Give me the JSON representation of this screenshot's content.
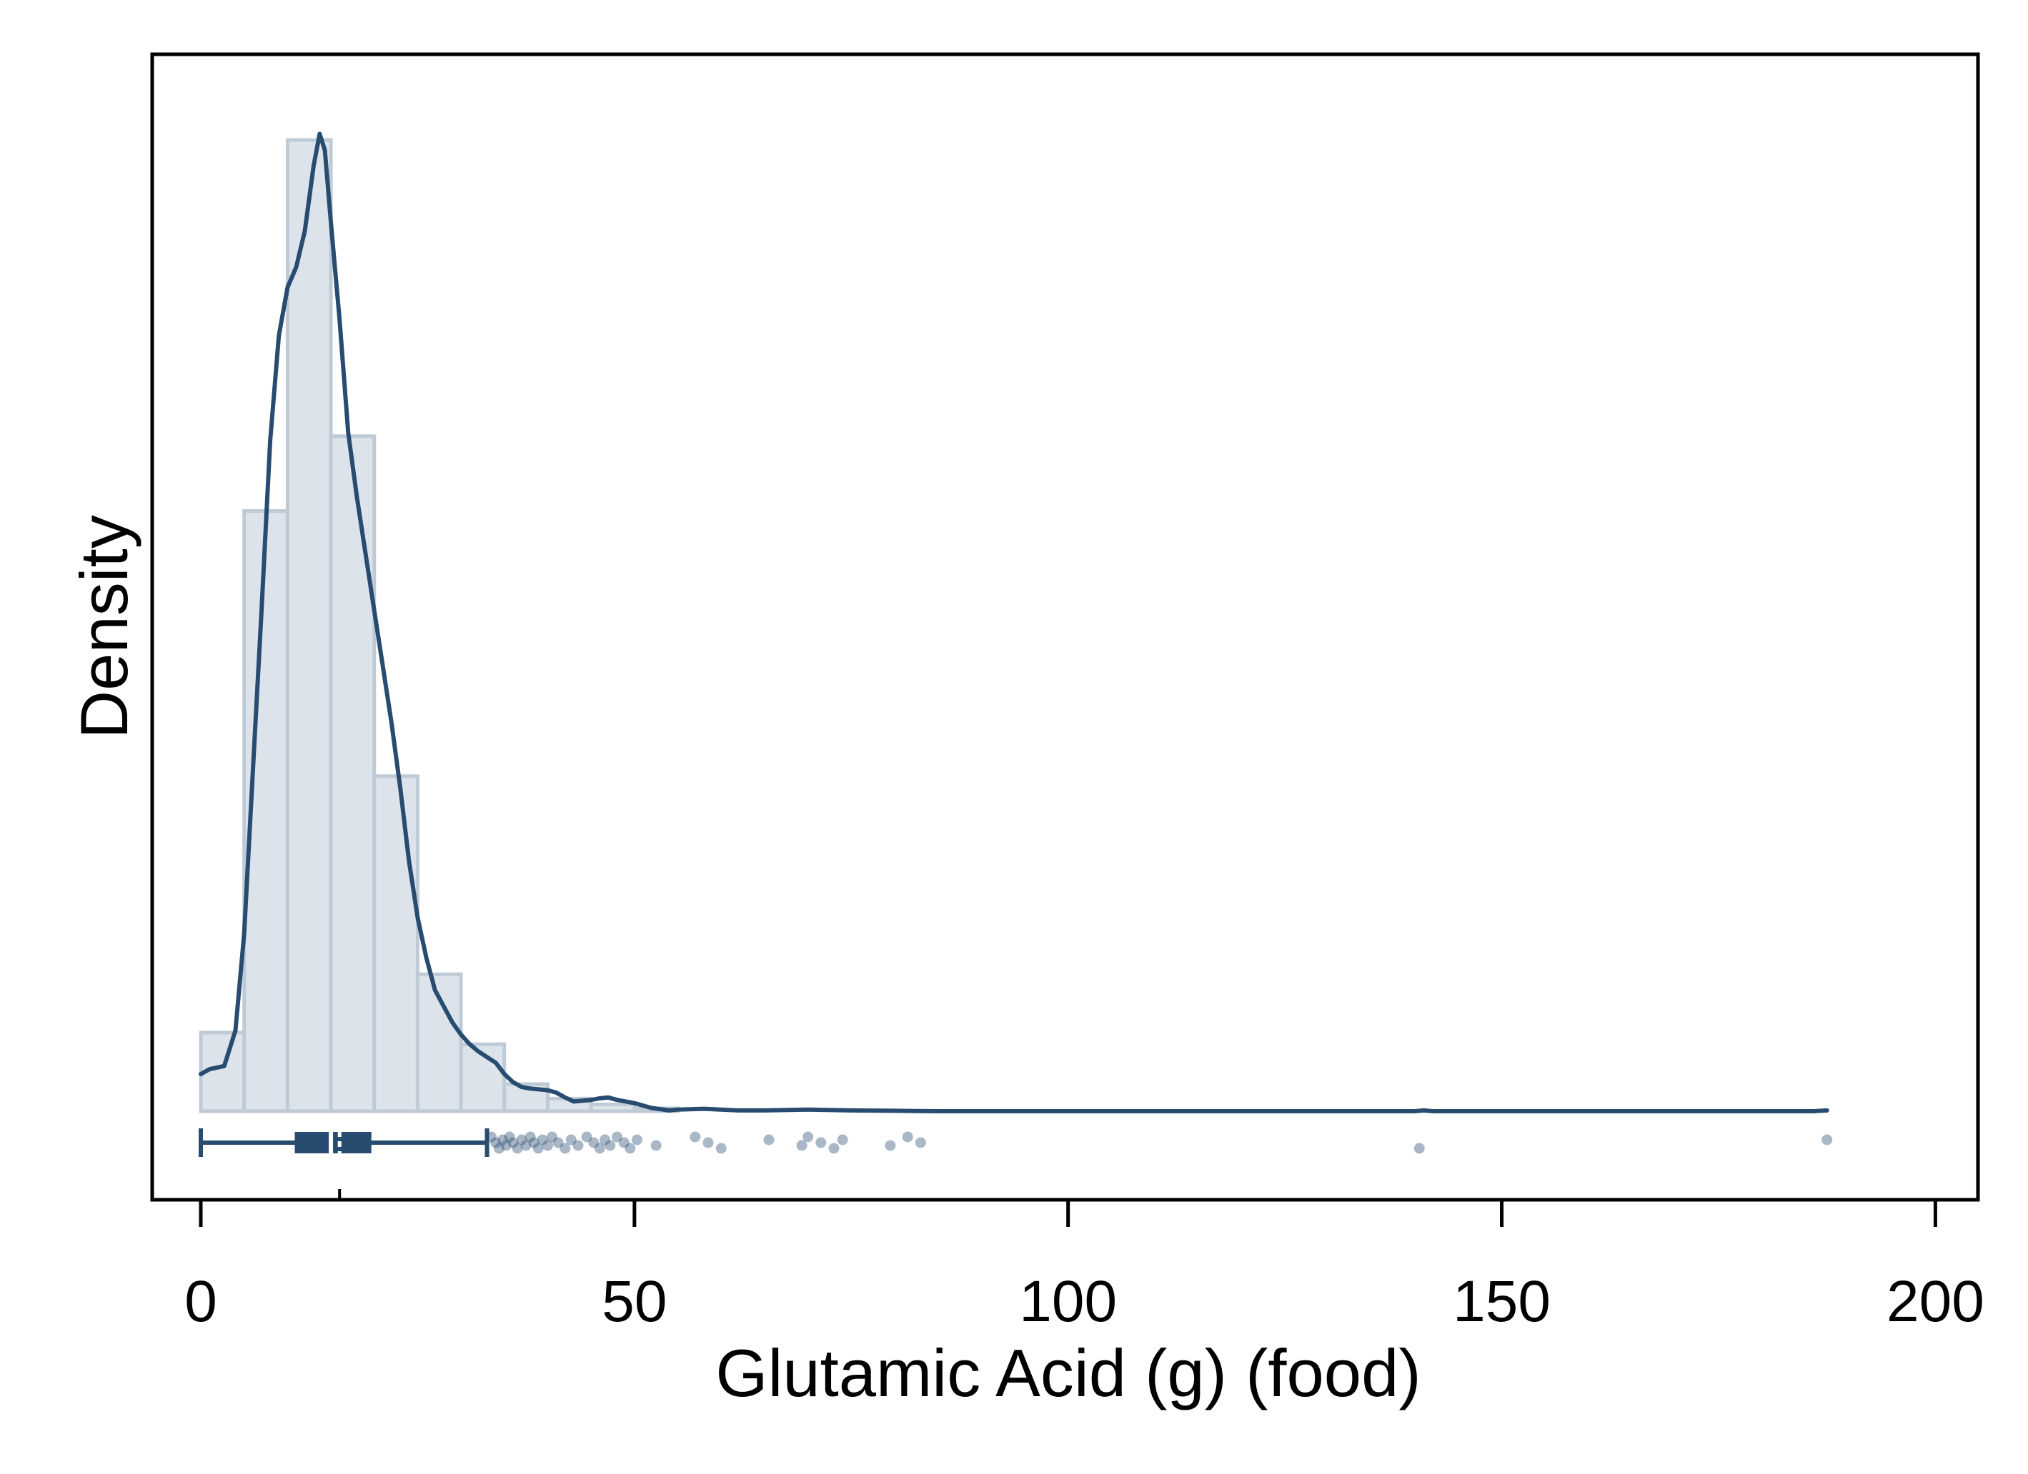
{
  "chart_data": {
    "type": "histogram",
    "xlabel": "Glutamic Acid (g) (food)",
    "ylabel": "Density",
    "xlim": [
      -5,
      206
    ],
    "xticks": [
      "0",
      "50",
      "100",
      "150",
      "200"
    ],
    "xtick_values": [
      0,
      50,
      100,
      150,
      200
    ],
    "y_ticks_shown": false,
    "grid": false,
    "colors": {
      "bar_fill": "#dde3ea",
      "bar_edge": "#bfcad7",
      "line": "#274c70",
      "points": "#274c70"
    },
    "histogram": {
      "bin_width": 5,
      "bins": [
        {
          "x0": 0,
          "x1": 5,
          "rel_height": 0.081
        },
        {
          "x0": 5,
          "x1": 10,
          "rel_height": 0.618
        },
        {
          "x0": 10,
          "x1": 15,
          "rel_height": 1.0
        },
        {
          "x0": 15,
          "x1": 20,
          "rel_height": 0.695
        },
        {
          "x0": 20,
          "x1": 25,
          "rel_height": 0.345
        },
        {
          "x0": 25,
          "x1": 30,
          "rel_height": 0.141
        },
        {
          "x0": 30,
          "x1": 35,
          "rel_height": 0.069
        },
        {
          "x0": 35,
          "x1": 40,
          "rel_height": 0.028
        },
        {
          "x0": 40,
          "x1": 45,
          "rel_height": 0.013
        },
        {
          "x0": 45,
          "x1": 50,
          "rel_height": 0.007
        },
        {
          "x0": 50,
          "x1": 55,
          "rel_height": 0.003
        }
      ]
    },
    "density_curve": [
      [
        0,
        0.046
      ],
      [
        1,
        0.052
      ],
      [
        2.7,
        0.056
      ],
      [
        4,
        0.1
      ],
      [
        5,
        0.22
      ],
      [
        6,
        0.42
      ],
      [
        7,
        0.62
      ],
      [
        8,
        0.83
      ],
      [
        9,
        0.96
      ],
      [
        10,
        1.02
      ],
      [
        11,
        1.045
      ],
      [
        12,
        1.09
      ],
      [
        13,
        1.17
      ],
      [
        13.7,
        1.21
      ],
      [
        14.3,
        1.19
      ],
      [
        15,
        1.1
      ],
      [
        16,
        0.98
      ],
      [
        17,
        0.84
      ],
      [
        18,
        0.76
      ],
      [
        19,
        0.69
      ],
      [
        20,
        0.62
      ],
      [
        21,
        0.55
      ],
      [
        22,
        0.48
      ],
      [
        23,
        0.4
      ],
      [
        24,
        0.31
      ],
      [
        25,
        0.24
      ],
      [
        26,
        0.19
      ],
      [
        27,
        0.15
      ],
      [
        28,
        0.13
      ],
      [
        29,
        0.11
      ],
      [
        30,
        0.095
      ],
      [
        31,
        0.083
      ],
      [
        32,
        0.074
      ],
      [
        33,
        0.067
      ],
      [
        34,
        0.06
      ],
      [
        35,
        0.046
      ],
      [
        36,
        0.036
      ],
      [
        37,
        0.03
      ],
      [
        38,
        0.028
      ],
      [
        40,
        0.026
      ],
      [
        41,
        0.023
      ],
      [
        42,
        0.017
      ],
      [
        43,
        0.012
      ],
      [
        45,
        0.014
      ],
      [
        46,
        0.016
      ],
      [
        47,
        0.017
      ],
      [
        48,
        0.014
      ],
      [
        50,
        0.01
      ],
      [
        51,
        0.007
      ],
      [
        52,
        0.004
      ],
      [
        54,
        0.001
      ],
      [
        55,
        0.002
      ],
      [
        58,
        0.003
      ],
      [
        62,
        0.001
      ],
      [
        65,
        0.001
      ],
      [
        70,
        0.002
      ],
      [
        75,
        0.001
      ],
      [
        80,
        0.0005
      ],
      [
        85,
        0.0
      ],
      [
        140,
        0.0
      ],
      [
        141,
        0.001
      ],
      [
        142,
        0.0
      ],
      [
        186,
        0.0
      ],
      [
        187.5,
        0.001
      ]
    ],
    "boxplot": {
      "min": 0,
      "q1": 11,
      "median": 15,
      "q3": 19.5,
      "whisker_high": 33,
      "mean": 16
    },
    "outliers": [
      33.5,
      34,
      34.4,
      34.8,
      35.2,
      35.6,
      36,
      36.5,
      37,
      37.5,
      38,
      38.4,
      38.9,
      39.4,
      40,
      40.5,
      41.2,
      42,
      42.7,
      43.5,
      44.5,
      45.3,
      46,
      46.6,
      47.2,
      48,
      48.8,
      49.5,
      50.3,
      52.5,
      57,
      58.5,
      60,
      65.5,
      69.3,
      70,
      71.5,
      73,
      74,
      79.5,
      81.5,
      83,
      140.5,
      187.5
    ]
  }
}
